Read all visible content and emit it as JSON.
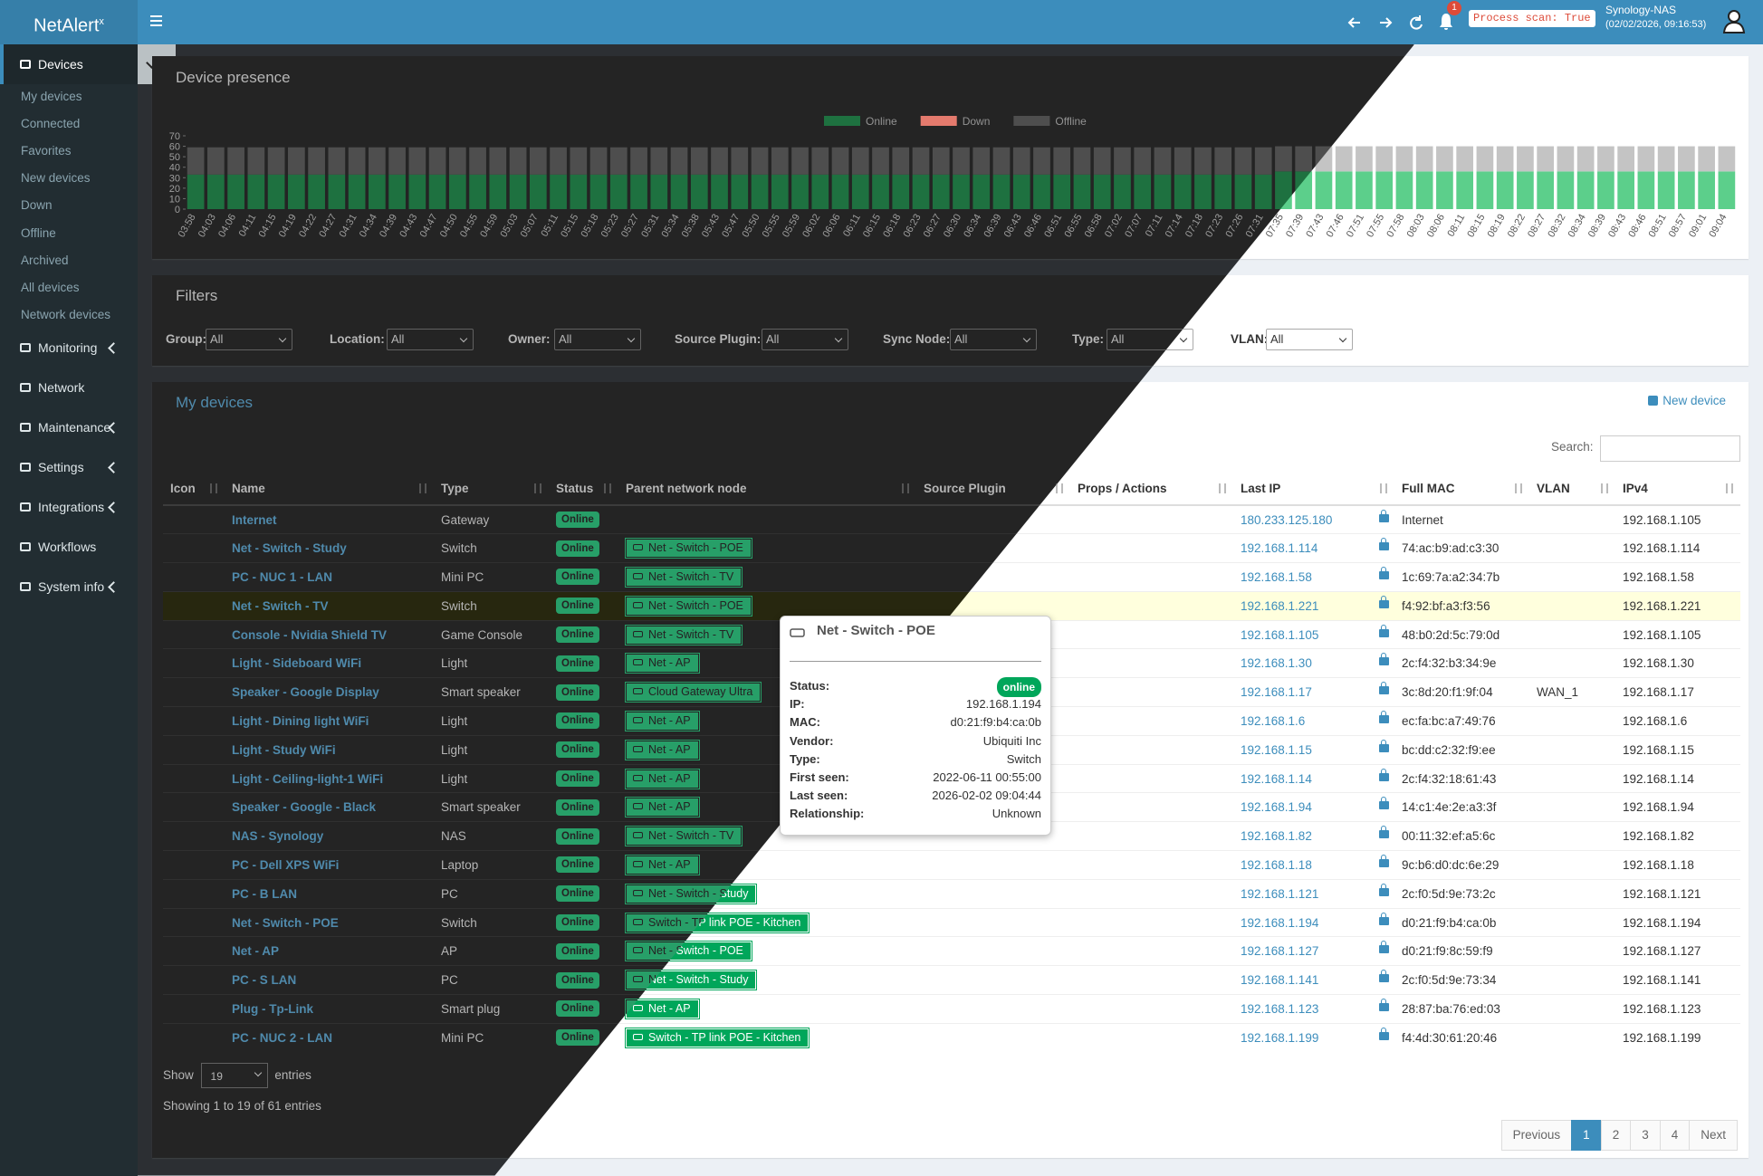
{
  "header": {
    "logo": "NetAlert",
    "logo_sup": "x",
    "notification_count": 1,
    "process_scan": "Process scan: True",
    "host": "Synology-NAS",
    "datetime": "(02/02/2026, 09:16:53)"
  },
  "sidebar": {
    "devices": "Devices",
    "device_items": [
      "My devices",
      "Connected",
      "Favorites",
      "New devices",
      "Down",
      "Offline",
      "Archived",
      "All devices",
      "Network devices"
    ],
    "menu": [
      "Monitoring",
      "Network",
      "Maintenance",
      "Settings",
      "Integrations",
      "Workflows",
      "System info"
    ]
  },
  "chart_data": {
    "type": "bar",
    "stacked": true,
    "title": "Device presence",
    "categories": [
      "03:58",
      "04:03",
      "04:06",
      "04:11",
      "04:15",
      "04:19",
      "04:22",
      "04:27",
      "04:31",
      "04:34",
      "04:39",
      "04:43",
      "04:47",
      "04:50",
      "04:55",
      "04:59",
      "05:03",
      "05:07",
      "05:11",
      "05:15",
      "05:18",
      "05:23",
      "05:27",
      "05:31",
      "05:34",
      "05:38",
      "05:43",
      "05:47",
      "05:50",
      "05:55",
      "05:59",
      "06:02",
      "06:06",
      "06:11",
      "06:15",
      "06:18",
      "06:23",
      "06:27",
      "06:30",
      "06:34",
      "06:39",
      "06:43",
      "06:46",
      "06:51",
      "06:55",
      "06:58",
      "07:02",
      "07:07",
      "07:11",
      "07:14",
      "07:18",
      "07:23",
      "07:26",
      "07:31",
      "07:35",
      "07:39",
      "07:43",
      "07:46",
      "07:51",
      "07:55",
      "07:58",
      "08:03",
      "08:06",
      "08:11",
      "08:15",
      "08:19",
      "08:22",
      "08:27",
      "08:32",
      "08:34",
      "08:39",
      "08:43",
      "08:46",
      "08:51",
      "08:57",
      "09:01",
      "09:04"
    ],
    "series": [
      {
        "name": "Online",
        "color": "#5ccf8b",
        "values": [
          33,
          33,
          33,
          33,
          33,
          33,
          33,
          33,
          33,
          33,
          33,
          33,
          33,
          33,
          33,
          33,
          33,
          33,
          33,
          33,
          33,
          33,
          33,
          33,
          33,
          33,
          33,
          33,
          33,
          33,
          33,
          33,
          33,
          33,
          33,
          33,
          33,
          33,
          33,
          33,
          33,
          33,
          33,
          33,
          33,
          33,
          33,
          33,
          33,
          33,
          33,
          33,
          33,
          33,
          36,
          36,
          36,
          36,
          36,
          36,
          36,
          36,
          36,
          36,
          36,
          36,
          36,
          36,
          36,
          36,
          36,
          36,
          36,
          36,
          36,
          36,
          36
        ]
      },
      {
        "name": "Down",
        "color": "#dd4b39",
        "values": [
          0,
          0,
          0,
          0,
          0,
          0,
          0,
          0,
          0,
          0,
          0,
          0,
          0,
          0,
          0,
          0,
          0,
          0,
          0,
          0,
          0,
          0,
          0,
          0,
          0,
          0,
          0,
          0,
          0,
          0,
          0,
          0,
          0,
          0,
          0,
          0,
          0,
          0,
          0,
          0,
          0,
          0,
          0,
          0,
          0,
          0,
          0,
          0,
          0,
          0,
          0,
          0,
          0,
          0,
          0,
          0,
          0,
          0,
          0,
          0,
          0,
          0,
          0,
          0,
          0,
          0,
          0,
          0,
          0,
          0,
          0,
          0,
          0,
          0,
          0,
          0,
          0
        ]
      },
      {
        "name": "Offline",
        "color": "#c4c4c4",
        "values": [
          26,
          26,
          26,
          26,
          26,
          26,
          26,
          26,
          26,
          26,
          26,
          26,
          26,
          26,
          26,
          26,
          26,
          26,
          26,
          26,
          26,
          26,
          26,
          26,
          26,
          26,
          26,
          26,
          26,
          26,
          26,
          26,
          26,
          26,
          26,
          26,
          26,
          26,
          26,
          26,
          26,
          26,
          26,
          26,
          26,
          26,
          26,
          26,
          26,
          26,
          26,
          26,
          26,
          26,
          24,
          24,
          24,
          24,
          24,
          24,
          24,
          24,
          24,
          24,
          24,
          24,
          24,
          24,
          24,
          24,
          24,
          24,
          24,
          24,
          24,
          24,
          24
        ]
      }
    ],
    "ylim": [
      0,
      70
    ],
    "yticks": [
      0,
      10,
      20,
      30,
      40,
      50,
      60,
      70
    ],
    "grid": false,
    "legend": "top"
  },
  "filters": {
    "title": "Filters",
    "fields": [
      {
        "label": "Group:",
        "value": "All"
      },
      {
        "label": "Location:",
        "value": "All"
      },
      {
        "label": "Owner:",
        "value": "All"
      },
      {
        "label": "Source Plugin:",
        "value": "All"
      },
      {
        "label": "Sync Node:",
        "value": "All"
      },
      {
        "label": "Type:",
        "value": "All"
      },
      {
        "label": "VLAN:",
        "value": "All"
      }
    ]
  },
  "devices": {
    "title": "My devices",
    "new_device": "New device",
    "search_label": "Search:",
    "columns": [
      "Icon",
      "Name",
      "Type",
      "Status",
      "Parent network node",
      "Source Plugin",
      "Props / Actions",
      "Last IP",
      "Full MAC",
      "VLAN",
      "IPv4"
    ],
    "rows": [
      {
        "name": "Internet",
        "type": "Gateway",
        "status": "Online",
        "last_ip": "180.233.125.180",
        "mac": "Internet",
        "ipv4": "192.168.1.105"
      },
      {
        "name": "Net - Switch - Study",
        "type": "Switch",
        "status": "Online",
        "parent": "Net - Switch - POE",
        "last_ip": "192.168.1.114",
        "mac": "74:ac:b9:ad:c3:30",
        "ipv4": "192.168.1.114"
      },
      {
        "name": "PC - NUC 1 - LAN",
        "type": "Mini PC",
        "status": "Online",
        "parent": "Net - Switch - TV",
        "last_ip": "192.168.1.58",
        "mac": "1c:69:7a:a2:34:7b",
        "ipv4": "192.168.1.58"
      },
      {
        "name": "Net - Switch - TV",
        "type": "Switch",
        "status": "Online",
        "parent": "Net - Switch - POE",
        "last_ip": "192.168.1.221",
        "mac": "f4:92:bf:a3:f3:56",
        "ipv4": "192.168.1.221"
      },
      {
        "name": "Console - Nvidia Shield TV",
        "type": "Game Console",
        "status": "Online",
        "parent": "Net - Switch - TV",
        "last_ip": "192.168.1.105",
        "mac": "48:b0:2d:5c:79:0d",
        "ipv4": "192.168.1.105"
      },
      {
        "name": "Light - Sideboard WiFi",
        "type": "Light",
        "status": "Online",
        "parent": "Net - AP",
        "last_ip": "192.168.1.30",
        "mac": "2c:f4:32:b3:34:9e",
        "ipv4": "192.168.1.30"
      },
      {
        "name": "Speaker - Google Display",
        "type": "Smart speaker",
        "status": "Online",
        "parent": "Cloud Gateway Ultra",
        "last_ip": "192.168.1.17",
        "mac": "3c:8d:20:f1:9f:04",
        "vlan": "WAN_1",
        "ipv4": "192.168.1.17"
      },
      {
        "name": "Light - Dining light WiFi",
        "type": "Light",
        "status": "Online",
        "parent": "Net - AP",
        "last_ip": "192.168.1.6",
        "mac": "ec:fa:bc:a7:49:76",
        "ipv4": "192.168.1.6"
      },
      {
        "name": "Light - Study WiFi",
        "type": "Light",
        "status": "Online",
        "parent": "Net - AP",
        "last_ip": "192.168.1.15",
        "mac": "bc:dd:c2:32:f9:ee",
        "ipv4": "192.168.1.15"
      },
      {
        "name": "Light - Ceiling-light-1 WiFi",
        "type": "Light",
        "status": "Online",
        "parent": "Net - AP",
        "last_ip": "192.168.1.14",
        "mac": "2c:f4:32:18:61:43",
        "ipv4": "192.168.1.14"
      },
      {
        "name": "Speaker - Google - Black",
        "type": "Smart speaker",
        "status": "Online",
        "parent": "Net - AP",
        "last_ip": "192.168.1.94",
        "mac": "14:c1:4e:2e:a3:3f",
        "ipv4": "192.168.1.94"
      },
      {
        "name": "NAS - Synology",
        "type": "NAS",
        "status": "Online",
        "parent": "Net - Switch - TV",
        "last_ip": "192.168.1.82",
        "mac": "00:11:32:ef:a5:6c",
        "ipv4": "192.168.1.82"
      },
      {
        "name": "PC - Dell XPS WiFi",
        "type": "Laptop",
        "status": "Online",
        "parent": "Net - AP",
        "last_ip": "192.168.1.18",
        "mac": "9c:b6:d0:dc:6e:29",
        "ipv4": "192.168.1.18"
      },
      {
        "name": "PC - B LAN",
        "type": "PC",
        "status": "Online",
        "parent": "Net - Switch - Study",
        "last_ip": "192.168.1.121",
        "mac": "2c:f0:5d:9e:73:2c",
        "ipv4": "192.168.1.121"
      },
      {
        "name": "Net - Switch - POE",
        "type": "Switch",
        "status": "Online",
        "parent": "Switch - TP link POE - Kitchen",
        "last_ip": "192.168.1.194",
        "mac": "d0:21:f9:b4:ca:0b",
        "ipv4": "192.168.1.194"
      },
      {
        "name": "Net - AP",
        "type": "AP",
        "status": "Online",
        "parent": "Net - Switch - POE",
        "last_ip": "192.168.1.127",
        "mac": "d0:21:f9:8c:59:f9",
        "ipv4": "192.168.1.127"
      },
      {
        "name": "PC - S LAN",
        "type": "PC",
        "status": "Online",
        "parent": "Net - Switch - Study",
        "last_ip": "192.168.1.141",
        "mac": "2c:f0:5d:9e:73:34",
        "ipv4": "192.168.1.141"
      },
      {
        "name": "Plug - Tp-Link",
        "type": "Smart plug",
        "status": "Online",
        "parent": "Net - AP",
        "last_ip": "192.168.1.123",
        "mac": "28:87:ba:76:ed:03",
        "ipv4": "192.168.1.123"
      },
      {
        "name": "PC - NUC 2 - LAN",
        "type": "Mini PC",
        "status": "Online",
        "parent": "Switch - TP link POE - Kitchen",
        "last_ip": "192.168.1.199",
        "mac": "f4:4d:30:61:20:46",
        "ipv4": "192.168.1.199"
      }
    ],
    "show": "Show",
    "page_length": 19,
    "entries": "entries",
    "info": "Showing 1 to 19 of 61 entries",
    "pagination": [
      "Previous",
      "1",
      "2",
      "3",
      "4",
      "Next"
    ]
  },
  "tooltip": {
    "title": "Net - Switch - POE",
    "fields": [
      {
        "label": "Status:",
        "badge": "online"
      },
      {
        "label": "IP:",
        "value": "192.168.1.194"
      },
      {
        "label": "MAC:",
        "value": "d0:21:f9:b4:ca:0b"
      },
      {
        "label": "Vendor:",
        "value": "Ubiquiti Inc"
      },
      {
        "label": "Type:",
        "value": "Switch"
      },
      {
        "label": "First seen:",
        "value": "2022-06-11 00:55:00"
      },
      {
        "label": "Last seen:",
        "value": "2026-02-02 09:04:44"
      },
      {
        "label": "Relationship:",
        "value": "Unknown"
      }
    ]
  }
}
